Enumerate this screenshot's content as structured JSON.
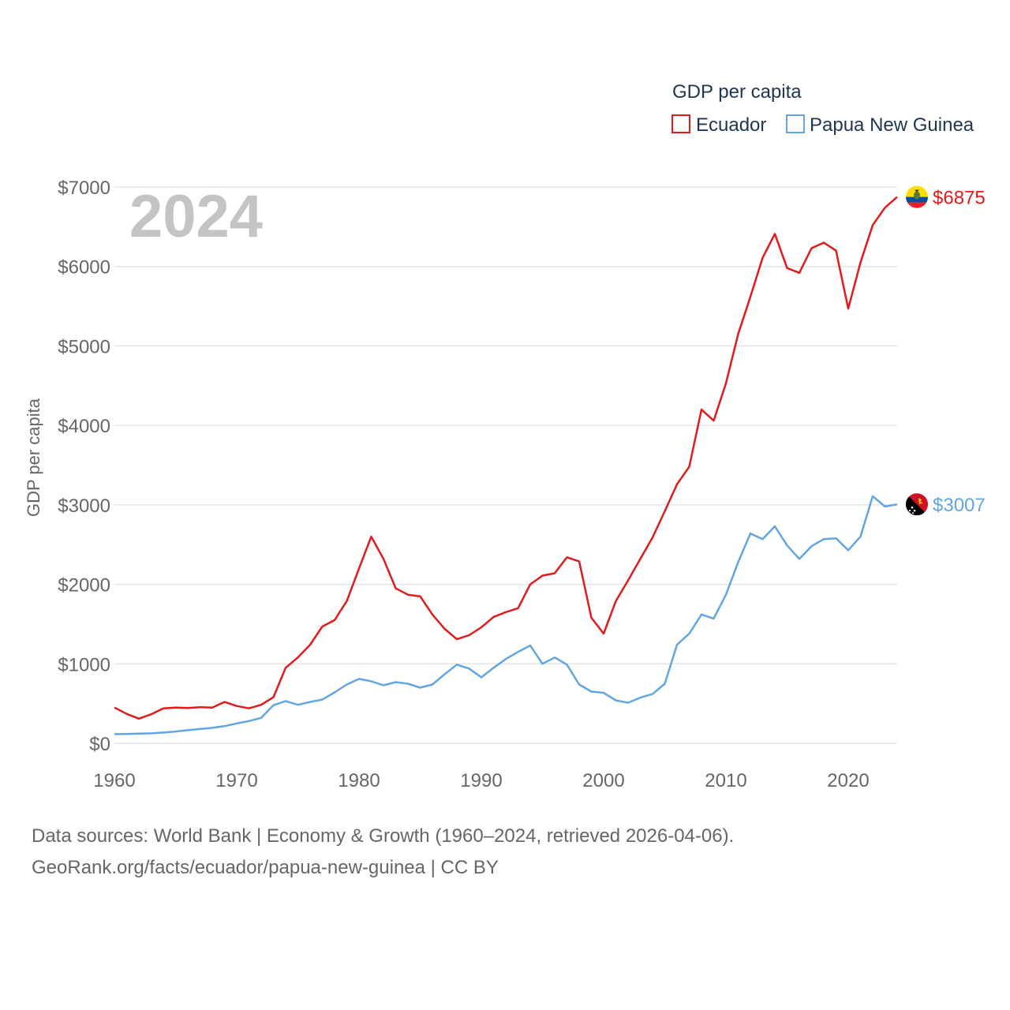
{
  "chart_data": {
    "type": "line",
    "title": "GDP per capita",
    "ylabel": "GDP per capita",
    "xlabel": "",
    "year_label": "2024",
    "xlim": [
      1960,
      2024
    ],
    "ylim": [
      0,
      7000
    ],
    "x_ticks": [
      {
        "value": 1960,
        "label": "1960"
      },
      {
        "value": 1970,
        "label": "1970"
      },
      {
        "value": 1980,
        "label": "1980"
      },
      {
        "value": 1990,
        "label": "1990"
      },
      {
        "value": 2000,
        "label": "2000"
      },
      {
        "value": 2010,
        "label": "2010"
      },
      {
        "value": 2020,
        "label": "2020"
      }
    ],
    "y_ticks": [
      {
        "value": 0,
        "label": "$0"
      },
      {
        "value": 1000,
        "label": "$1000"
      },
      {
        "value": 2000,
        "label": "$2000"
      },
      {
        "value": 3000,
        "label": "$3000"
      },
      {
        "value": 4000,
        "label": "$4000"
      },
      {
        "value": 5000,
        "label": "$5000"
      },
      {
        "value": 6000,
        "label": "$6000"
      },
      {
        "value": 7000,
        "label": "$7000"
      }
    ],
    "grid": true,
    "legend_position": "top-right",
    "x": [
      1960,
      1961,
      1962,
      1963,
      1964,
      1965,
      1966,
      1967,
      1968,
      1969,
      1970,
      1971,
      1972,
      1973,
      1974,
      1975,
      1976,
      1977,
      1978,
      1979,
      1980,
      1981,
      1982,
      1983,
      1984,
      1985,
      1986,
      1987,
      1988,
      1989,
      1990,
      1991,
      1992,
      1993,
      1994,
      1995,
      1996,
      1997,
      1998,
      1999,
      2000,
      2001,
      2002,
      2003,
      2004,
      2005,
      2006,
      2007,
      2008,
      2009,
      2010,
      2011,
      2012,
      2013,
      2014,
      2015,
      2016,
      2017,
      2018,
      2019,
      2020,
      2021,
      2022,
      2023,
      2024
    ],
    "series": [
      {
        "name": "Ecuador",
        "color": "#e31a1c",
        "end_label": "$6875",
        "flag": "ecuador-flag",
        "values": [
          450,
          370,
          310,
          365,
          440,
          450,
          445,
          455,
          450,
          520,
          470,
          440,
          485,
          580,
          950,
          1080,
          1240,
          1470,
          1550,
          1790,
          2200,
          2600,
          2320,
          1950,
          1870,
          1850,
          1620,
          1440,
          1310,
          1360,
          1460,
          1590,
          1650,
          1700,
          2000,
          2110,
          2140,
          2340,
          2290,
          1580,
          1380,
          1790,
          2050,
          2320,
          2590,
          2920,
          3260,
          3480,
          4200,
          4060,
          4530,
          5150,
          5620,
          6110,
          6410,
          5980,
          5920,
          6230,
          6300,
          6200,
          5470,
          6050,
          6520,
          6740,
          6875
        ]
      },
      {
        "name": "Papua New Guinea",
        "color": "#62a5e3",
        "end_label": "$3007",
        "flag": "papua-new-guinea-flag",
        "values": [
          115,
          118,
          122,
          125,
          135,
          148,
          165,
          180,
          195,
          215,
          250,
          280,
          320,
          480,
          530,
          485,
          520,
          550,
          640,
          740,
          810,
          780,
          730,
          770,
          750,
          700,
          740,
          870,
          990,
          940,
          830,
          950,
          1060,
          1150,
          1230,
          1000,
          1080,
          990,
          740,
          650,
          635,
          540,
          510,
          575,
          620,
          750,
          1240,
          1380,
          1620,
          1570,
          1870,
          2280,
          2640,
          2570,
          2730,
          2490,
          2320,
          2480,
          2570,
          2580,
          2430,
          2600,
          3110,
          2980,
          3007
        ]
      }
    ],
    "footer": {
      "line1": "Data sources: World Bank | Economy & Growth (1960–2024, retrieved 2026-04-06).",
      "line2": "GeoRank.org/facts/ecuador/papua-new-guinea | CC BY"
    }
  }
}
